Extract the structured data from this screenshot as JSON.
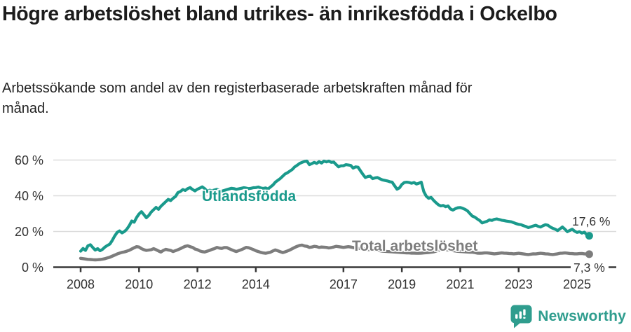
{
  "header": {
    "title": "Högre arbetslöshet bland utrikes- än inrikesfödda i Ockelbo",
    "subtitle": "Arbetssökande som andel av den registerbaserade arbetskraften månad för månad."
  },
  "footer": {
    "brand": "Newsworthy"
  },
  "colors": {
    "teal": "#1a9a8c",
    "gray": "#7d7d7d",
    "axis": "#383838",
    "grid": "#dcdcdc",
    "tick_text": "#333333",
    "title_text": "#1c1c1c"
  },
  "chart_data": {
    "type": "line",
    "title": "Högre arbetslöshet bland utrikes- än inrikesfödda i Ockelbo",
    "subtitle": "Arbetssökande som andel av den registerbaserade arbetskraften månad för månad.",
    "x_unit": "month",
    "x_start": "2008-01",
    "x_end": "2025-06",
    "ylim": [
      0,
      62
    ],
    "grid": "horizontal",
    "xticks": [
      2008,
      2010,
      2012,
      2014,
      2017,
      2019,
      2021,
      2023,
      2025
    ],
    "yticks": [
      {
        "value": 0,
        "label": "0 %"
      },
      {
        "value": 20,
        "label": "20 %"
      },
      {
        "value": 40,
        "label": "40 %"
      },
      {
        "value": 60,
        "label": "60 %"
      }
    ],
    "series": [
      {
        "name": "Utlandsfödda",
        "label": "Utlandsfödda",
        "end_label": "17,6 %",
        "end_value": 17.6,
        "color": "#1a9a8c",
        "values": [
          9.0,
          10.5,
          9.4,
          12.0,
          12.6,
          11.0,
          9.6,
          10.4,
          9.2,
          10.0,
          11.3,
          12.2,
          13.0,
          15.0,
          17.5,
          19.5,
          20.3,
          19.2,
          20.0,
          21.3,
          23.3,
          25.9,
          25.2,
          27.8,
          29.8,
          31.1,
          29.5,
          27.7,
          29.0,
          30.9,
          32.2,
          33.5,
          32.4,
          34.1,
          35.4,
          36.7,
          38.0,
          37.3,
          38.6,
          39.6,
          41.8,
          42.4,
          43.5,
          43.0,
          44.0,
          44.6,
          43.5,
          42.7,
          43.7,
          44.3,
          45.0,
          44.0,
          42.4,
          43.1,
          42.8,
          43.2,
          43.6,
          43.0,
          42.6,
          43.0,
          43.4,
          43.8,
          44.2,
          44.0,
          43.6,
          43.9,
          44.2,
          44.5,
          44.3,
          44.0,
          44.2,
          44.5,
          44.6,
          44.9,
          44.4,
          44.1,
          44.4,
          43.8,
          44.9,
          46.0,
          47.6,
          48.6,
          49.6,
          50.9,
          52.2,
          52.9,
          53.8,
          54.8,
          56.2,
          57.1,
          58.1,
          58.7,
          59.2,
          59.4,
          57.4,
          58.0,
          58.7,
          58.1,
          59.1,
          58.3,
          59.4,
          59.0,
          59.4,
          58.7,
          58.9,
          57.5,
          56.2,
          56.8,
          56.8,
          57.4,
          57.2,
          57.0,
          55.5,
          56.2,
          56.0,
          54.0,
          52.0,
          50.2,
          50.8,
          51.0,
          49.6,
          50.0,
          50.2,
          49.5,
          48.9,
          48.6,
          48.3,
          47.9,
          47.6,
          45.7,
          43.7,
          44.4,
          46.3,
          47.4,
          47.6,
          47.4,
          47.0,
          47.4,
          46.6,
          47.0,
          47.6,
          42.4,
          39.8,
          38.6,
          39.1,
          37.5,
          36.2,
          35.0,
          34.3,
          34.6,
          33.9,
          34.3,
          32.6,
          32.0,
          32.8,
          33.3,
          33.4,
          33.0,
          32.4,
          31.5,
          30.0,
          28.6,
          28.0,
          27.0,
          26.1,
          24.8,
          25.3,
          25.7,
          26.5,
          26.2,
          26.8,
          27.0,
          26.7,
          26.3,
          26.1,
          25.8,
          25.6,
          25.4,
          24.9,
          24.4,
          24.0,
          23.8,
          23.2,
          22.8,
          22.2,
          22.6,
          23.1,
          23.5,
          22.9,
          22.5,
          23.2,
          23.8,
          23.5,
          22.5,
          21.8,
          21.3,
          20.5,
          21.5,
          22.5,
          21.3,
          19.9,
          20.6,
          21.3,
          20.2,
          19.5,
          19.9,
          19.1,
          19.6,
          18.2,
          17.6
        ]
      },
      {
        "name": "Total arbetslöshet",
        "label": "Total arbetslöshet",
        "end_label": "7,3 %",
        "end_value": 7.3,
        "color": "#7d7d7d",
        "values": [
          5.0,
          4.8,
          4.6,
          4.4,
          4.3,
          4.2,
          4.1,
          4.2,
          4.3,
          4.5,
          4.8,
          5.2,
          5.6,
          6.2,
          6.8,
          7.4,
          7.9,
          8.3,
          8.6,
          9.0,
          9.5,
          10.2,
          10.9,
          11.5,
          11.3,
          10.4,
          9.8,
          9.4,
          9.6,
          9.8,
          10.4,
          9.8,
          9.1,
          8.5,
          9.4,
          10.0,
          9.7,
          9.4,
          8.8,
          9.3,
          9.8,
          10.4,
          11.1,
          11.7,
          12.0,
          11.5,
          11.1,
          10.2,
          9.8,
          9.1,
          8.7,
          8.5,
          9.0,
          9.4,
          10.0,
          10.4,
          11.1,
          10.7,
          10.5,
          11.0,
          11.0,
          10.4,
          9.8,
          9.2,
          8.8,
          9.3,
          9.8,
          10.4,
          11.1,
          10.9,
          10.4,
          9.9,
          9.2,
          8.8,
          8.3,
          8.0,
          7.8,
          8.1,
          8.4,
          9.1,
          9.7,
          9.2,
          8.7,
          8.2,
          8.6,
          9.1,
          9.7,
          10.4,
          11.1,
          11.7,
          12.2,
          12.4,
          11.9,
          11.7,
          11.1,
          11.3,
          11.7,
          11.5,
          11.1,
          11.3,
          11.2,
          11.1,
          10.8,
          11.0,
          11.3,
          11.7,
          11.5,
          11.3,
          11.1,
          11.3,
          11.5,
          11.3,
          11.0,
          10.8,
          10.6,
          10.4,
          10.2,
          10.0,
          9.9,
          9.8,
          9.7,
          9.6,
          9.4,
          9.2,
          9.0,
          8.9,
          8.8,
          8.7,
          8.6,
          8.5,
          8.4,
          8.3,
          8.2,
          8.1,
          8.0,
          8.0,
          7.9,
          7.9,
          7.8,
          7.8,
          7.9,
          8.0,
          8.1,
          8.2,
          8.4,
          8.6,
          9.0,
          9.5,
          9.8,
          10.0,
          9.9,
          9.7,
          9.5,
          9.3,
          9.1,
          8.9,
          8.8,
          8.7,
          8.6,
          8.5,
          8.4,
          8.4,
          8.2,
          7.9,
          7.8,
          7.9,
          8.0,
          8.0,
          7.9,
          7.7,
          7.5,
          7.6,
          7.8,
          8.0,
          7.9,
          7.8,
          7.7,
          7.6,
          7.5,
          7.6,
          7.8,
          7.6,
          7.4,
          7.2,
          7.1,
          7.3,
          7.5,
          7.4,
          7.6,
          7.8,
          7.7,
          7.5,
          7.4,
          7.2,
          7.1,
          7.3,
          7.5,
          7.8,
          7.9,
          8.0,
          7.9,
          7.7,
          7.6,
          7.5,
          7.5,
          7.6,
          7.7,
          7.5,
          7.4,
          7.3
        ]
      }
    ]
  }
}
